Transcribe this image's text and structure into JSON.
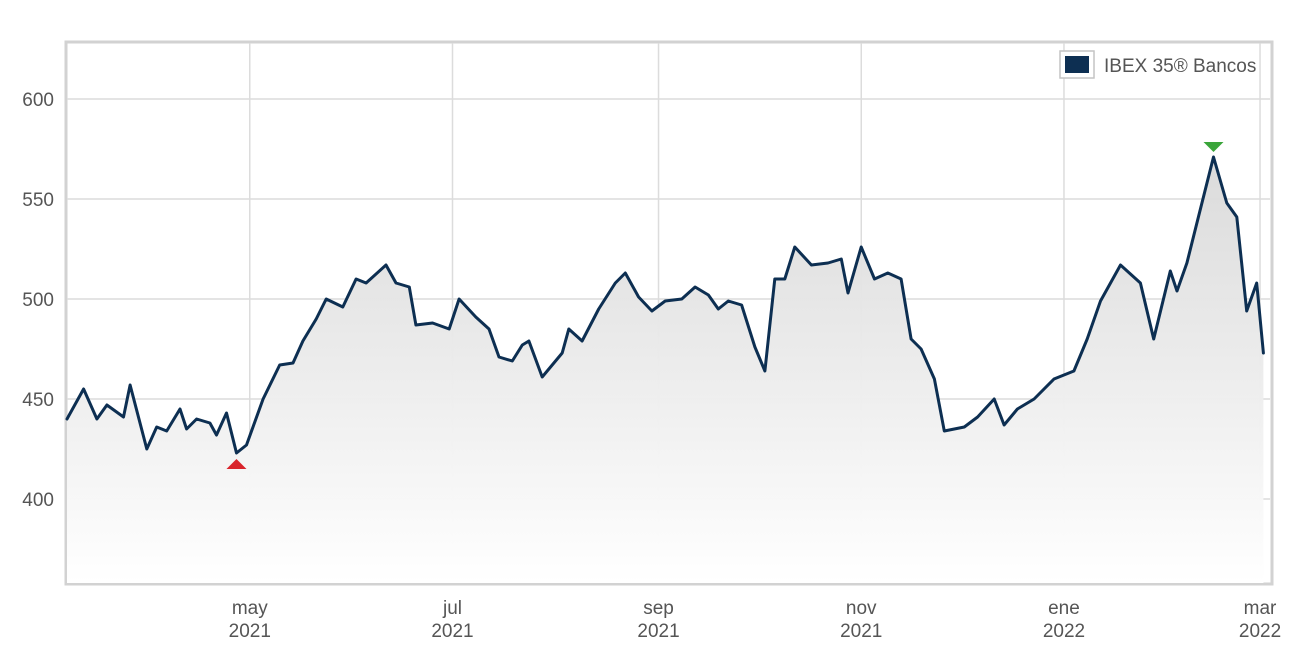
{
  "chart_data": {
    "type": "area",
    "title": "",
    "xlabel": "",
    "ylabel": "",
    "legend": {
      "position": "top-right",
      "entries": [
        {
          "name": "IBEX 35® Bancos",
          "color": "#0d2f52"
        }
      ]
    },
    "grid": true,
    "ylim": [
      358,
      628
    ],
    "y_ticks": [
      {
        "value": 400,
        "label": "400"
      },
      {
        "value": 450,
        "label": "450"
      },
      {
        "value": 500,
        "label": "500"
      },
      {
        "value": 550,
        "label": "550"
      },
      {
        "value": 600,
        "label": "600"
      }
    ],
    "xlim": [
      "2021-03-07",
      "2022-03-04"
    ],
    "x_ticks": [
      {
        "date": "2021-05-01",
        "month": "may",
        "year": "2021"
      },
      {
        "date": "2021-07-01",
        "month": "jul",
        "year": "2021"
      },
      {
        "date": "2021-09-01",
        "month": "sep",
        "year": "2021"
      },
      {
        "date": "2021-11-01",
        "month": "nov",
        "year": "2021"
      },
      {
        "date": "2022-01-01",
        "month": "ene",
        "year": "2022"
      },
      {
        "date": "2022-03-01",
        "month": "mar",
        "year": "2022"
      }
    ],
    "line_color": "#0d2f52",
    "min_marker_color": "#d9242b",
    "max_marker_color": "#3aa53a",
    "series": [
      {
        "name": "IBEX 35® Bancos",
        "x": [
          "2021-03-07",
          "2021-03-12",
          "2021-03-16",
          "2021-03-19",
          "2021-03-24",
          "2021-03-26",
          "2021-03-31",
          "2021-04-03",
          "2021-04-06",
          "2021-04-10",
          "2021-04-12",
          "2021-04-15",
          "2021-04-19",
          "2021-04-21",
          "2021-04-24",
          "2021-04-27",
          "2021-04-30",
          "2021-05-05",
          "2021-05-10",
          "2021-05-14",
          "2021-05-17",
          "2021-05-21",
          "2021-05-24",
          "2021-05-29",
          "2021-06-02",
          "2021-06-05",
          "2021-06-11",
          "2021-06-14",
          "2021-06-18",
          "2021-06-20",
          "2021-06-25",
          "2021-06-30",
          "2021-07-03",
          "2021-07-08",
          "2021-07-12",
          "2021-07-15",
          "2021-07-19",
          "2021-07-22",
          "2021-07-24",
          "2021-07-28",
          "2021-08-03",
          "2021-08-05",
          "2021-08-09",
          "2021-08-14",
          "2021-08-19",
          "2021-08-22",
          "2021-08-26",
          "2021-08-30",
          "2021-09-03",
          "2021-09-08",
          "2021-09-12",
          "2021-09-16",
          "2021-09-19",
          "2021-09-22",
          "2021-09-26",
          "2021-09-30",
          "2021-10-03",
          "2021-10-06",
          "2021-10-09",
          "2021-10-12",
          "2021-10-17",
          "2021-10-22",
          "2021-10-26",
          "2021-10-28",
          "2021-11-01",
          "2021-11-05",
          "2021-11-09",
          "2021-11-13",
          "2021-11-16",
          "2021-11-19",
          "2021-11-23",
          "2021-11-26",
          "2021-12-02",
          "2021-12-06",
          "2021-12-11",
          "2021-12-14",
          "2021-12-18",
          "2021-12-23",
          "2021-12-29",
          "2022-01-04",
          "2022-01-08",
          "2022-01-12",
          "2022-01-18",
          "2022-01-24",
          "2022-01-28",
          "2022-02-02",
          "2022-02-04",
          "2022-02-07",
          "2022-02-10",
          "2022-02-15",
          "2022-02-19",
          "2022-02-22",
          "2022-02-25",
          "2022-02-28",
          "2022-03-02"
        ],
        "values": [
          440,
          455,
          440,
          447,
          441,
          457,
          425,
          436,
          434,
          445,
          435,
          440,
          438,
          432,
          443,
          423,
          427,
          450,
          467,
          468,
          479,
          490,
          500,
          496,
          510,
          508,
          517,
          508,
          506,
          487,
          488,
          485,
          500,
          491,
          485,
          471,
          469,
          477,
          479,
          461,
          473,
          485,
          479,
          495,
          508,
          513,
          501,
          494,
          499,
          500,
          506,
          502,
          495,
          499,
          497,
          476,
          464,
          510,
          510,
          526,
          517,
          518,
          520,
          503,
          526,
          510,
          513,
          510,
          480,
          475,
          460,
          434,
          436,
          441,
          450,
          437,
          445,
          450,
          460,
          464,
          480,
          499,
          517,
          508,
          480,
          514,
          504,
          518,
          538,
          571,
          548,
          541,
          494,
          508,
          473
        ],
        "min": {
          "x": "2021-04-27",
          "value": 423
        },
        "max": {
          "x": "2022-02-15",
          "value": 571
        }
      }
    ]
  }
}
